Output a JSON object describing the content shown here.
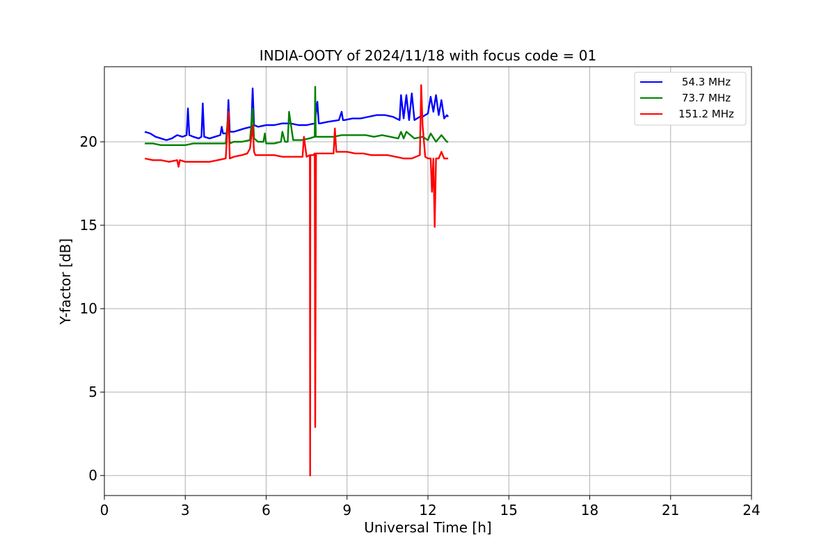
{
  "chart_data": {
    "type": "line",
    "title": "INDIA-OOTY of 2024/11/18 with focus code = 01",
    "xlabel": "Universal Time [h]",
    "ylabel": "Y-factor [dB]",
    "xlim": [
      0,
      24
    ],
    "ylim": [
      -1.2,
      24.5
    ],
    "xticks": [
      0,
      3,
      6,
      9,
      12,
      15,
      18,
      21,
      24
    ],
    "yticks": [
      0,
      5,
      10,
      15,
      20
    ],
    "grid": true,
    "legend_position": "top-right",
    "series": [
      {
        "name": " 54.3 MHz",
        "color": "#0000ff",
        "x": [
          1.5,
          1.7,
          1.9,
          2.1,
          2.3,
          2.5,
          2.7,
          2.9,
          3.05,
          3.1,
          3.15,
          3.3,
          3.5,
          3.6,
          3.65,
          3.7,
          3.9,
          4.1,
          4.3,
          4.35,
          4.4,
          4.55,
          4.6,
          4.65,
          4.8,
          5.0,
          5.2,
          5.45,
          5.5,
          5.55,
          5.7,
          6.0,
          6.3,
          6.6,
          6.9,
          7.2,
          7.5,
          7.8,
          7.9,
          7.95,
          8.0,
          8.3,
          8.7,
          8.8,
          8.85,
          8.9,
          9.2,
          9.5,
          9.8,
          10.1,
          10.4,
          10.7,
          10.95,
          11.0,
          11.1,
          11.2,
          11.3,
          11.4,
          11.5,
          11.6,
          11.7,
          11.8,
          11.9,
          12.0,
          12.1,
          12.2,
          12.3,
          12.4,
          12.5,
          12.6,
          12.7,
          12.75
        ],
        "y": [
          20.6,
          20.5,
          20.3,
          20.2,
          20.1,
          20.2,
          20.4,
          20.3,
          20.4,
          22.0,
          20.4,
          20.3,
          20.2,
          20.3,
          22.3,
          20.3,
          20.2,
          20.3,
          20.4,
          20.9,
          20.5,
          20.5,
          22.5,
          20.6,
          20.6,
          20.7,
          20.8,
          20.9,
          23.2,
          21.0,
          20.9,
          21.0,
          21.0,
          21.1,
          21.1,
          21.0,
          21.0,
          21.1,
          22.4,
          21.1,
          21.1,
          21.2,
          21.3,
          21.8,
          21.3,
          21.3,
          21.4,
          21.4,
          21.5,
          21.6,
          21.6,
          21.5,
          21.3,
          22.8,
          21.4,
          22.8,
          21.3,
          22.9,
          21.3,
          21.4,
          21.5,
          21.5,
          21.6,
          21.7,
          22.7,
          21.8,
          22.8,
          21.6,
          22.5,
          21.4,
          21.6,
          21.5
        ]
      },
      {
        "name": " 73.7 MHz",
        "color": "#008000",
        "x": [
          1.5,
          1.8,
          2.1,
          2.4,
          2.7,
          3.0,
          3.3,
          3.6,
          3.9,
          4.2,
          4.5,
          4.6,
          4.65,
          4.8,
          5.1,
          5.4,
          5.5,
          5.55,
          5.7,
          5.9,
          5.95,
          6.0,
          6.3,
          6.55,
          6.6,
          6.7,
          6.8,
          6.85,
          7.0,
          7.3,
          7.6,
          7.8,
          7.82,
          7.84,
          7.9,
          8.2,
          8.5,
          8.8,
          9.1,
          9.4,
          9.7,
          10.0,
          10.3,
          10.6,
          10.9,
          11.0,
          11.1,
          11.2,
          11.5,
          11.8,
          12.0,
          12.1,
          12.3,
          12.5,
          12.7,
          12.75
        ],
        "y": [
          19.9,
          19.9,
          19.8,
          19.8,
          19.8,
          19.8,
          19.9,
          19.9,
          19.9,
          19.9,
          19.9,
          21.8,
          19.9,
          20.0,
          20.0,
          20.1,
          22.0,
          20.2,
          20.0,
          20.0,
          20.5,
          19.9,
          19.9,
          20.0,
          20.6,
          20.0,
          20.0,
          21.8,
          20.1,
          20.1,
          20.2,
          20.3,
          23.3,
          20.3,
          20.3,
          20.3,
          20.3,
          20.4,
          20.4,
          20.4,
          20.4,
          20.3,
          20.4,
          20.3,
          20.2,
          20.6,
          20.2,
          20.6,
          20.2,
          20.3,
          20.1,
          20.5,
          20.0,
          20.4,
          20.0,
          20.0
        ]
      },
      {
        "name": "151.2 MHz",
        "color": "#ff0000",
        "x": [
          1.5,
          1.8,
          2.1,
          2.4,
          2.7,
          2.75,
          2.8,
          3.0,
          3.3,
          3.6,
          3.9,
          4.2,
          4.5,
          4.6,
          4.65,
          4.8,
          5.1,
          5.3,
          5.4,
          5.5,
          5.55,
          5.6,
          5.8,
          6.0,
          6.3,
          6.6,
          6.9,
          7.2,
          7.35,
          7.4,
          7.5,
          7.62,
          7.63,
          7.64,
          7.66,
          7.7,
          7.75,
          7.8,
          7.82,
          7.85,
          7.9,
          8.2,
          8.5,
          8.55,
          8.6,
          8.7,
          9.0,
          9.3,
          9.6,
          9.9,
          10.2,
          10.5,
          10.8,
          11.1,
          11.4,
          11.7,
          11.75,
          11.8,
          11.9,
          12.0,
          12.1,
          12.15,
          12.2,
          12.25,
          12.3,
          12.4,
          12.5,
          12.6,
          12.75
        ],
        "y": [
          19.0,
          18.9,
          18.9,
          18.8,
          18.9,
          18.5,
          18.9,
          18.8,
          18.8,
          18.8,
          18.8,
          18.9,
          19.0,
          21.8,
          19.0,
          19.1,
          19.2,
          19.3,
          19.6,
          21.0,
          19.4,
          19.2,
          19.2,
          19.2,
          19.2,
          19.1,
          19.1,
          19.1,
          19.1,
          20.3,
          19.1,
          19.2,
          0.0,
          19.2,
          19.2,
          19.2,
          19.2,
          19.3,
          2.9,
          19.3,
          19.3,
          19.3,
          19.3,
          20.8,
          19.4,
          19.4,
          19.4,
          19.3,
          19.3,
          19.2,
          19.2,
          19.2,
          19.1,
          19.0,
          19.0,
          19.2,
          23.4,
          21.0,
          19.1,
          19.0,
          19.0,
          17.0,
          19.0,
          14.9,
          19.0,
          19.0,
          19.4,
          19.0,
          19.0
        ]
      }
    ]
  }
}
